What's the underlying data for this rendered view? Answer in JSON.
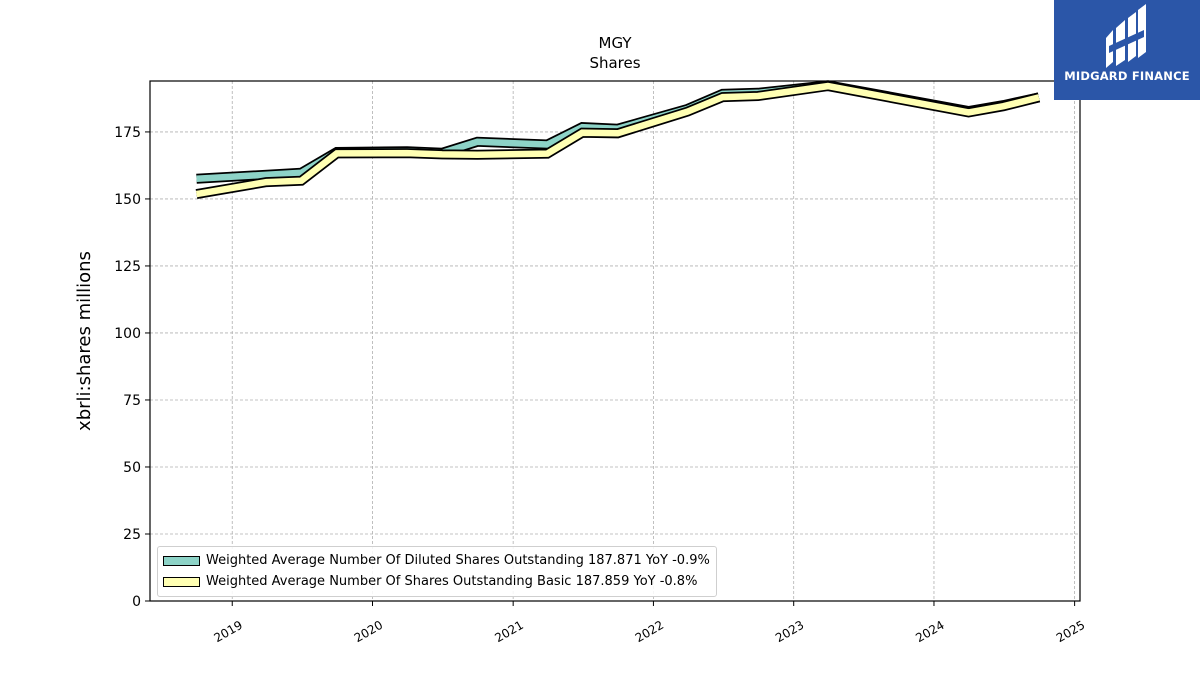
{
  "chart_data": {
    "type": "line",
    "title": "MGY",
    "subtitle": "Shares",
    "xlabel": "",
    "ylabel": "xbrli:shares millions",
    "x_ticks": [
      "2019",
      "2020",
      "2021",
      "2022",
      "2023",
      "2024",
      "2025"
    ],
    "y_ticks": [
      "0",
      "25",
      "50",
      "75",
      "100",
      "125",
      "150",
      "175"
    ],
    "xlim": [
      "2018-06-01",
      "2025-01-15"
    ],
    "ylim": [
      0,
      194
    ],
    "grid": true,
    "legend_position": "lower-left",
    "series": [
      {
        "name": "Weighted Average Number Of Diluted Shares Outstanding  187.871 YoY -0.9%",
        "color": "#8dd3c7",
        "x": [
          "2018-09-30",
          "2019-06-30",
          "2019-09-30",
          "2020-03-31",
          "2020-06-30",
          "2020-09-30",
          "2021-03-31",
          "2021-06-30",
          "2021-09-30",
          "2022-03-31",
          "2022-06-30",
          "2022-09-30",
          "2023-03-31",
          "2024-03-31",
          "2024-06-30",
          "2024-09-30"
        ],
        "values": [
          157.5,
          159.8,
          167.5,
          167.8,
          167.2,
          171.3,
          170.3,
          176.8,
          176.2,
          183.6,
          189.2,
          189.6,
          192.4,
          182.8,
          185.0,
          187.9
        ]
      },
      {
        "name": "Weighted Average Number Of Shares Outstanding Basic  187.859 YoY -0.8%",
        "color": "#ffffb3",
        "x": [
          "2018-09-30",
          "2019-03-31",
          "2019-06-30",
          "2019-09-30",
          "2020-03-31",
          "2020-06-30",
          "2020-09-30",
          "2021-03-31",
          "2021-06-30",
          "2021-09-30",
          "2022-03-31",
          "2022-06-30",
          "2022-09-30",
          "2023-03-31",
          "2024-03-31",
          "2024-06-30",
          "2024-09-30"
        ],
        "values": [
          151.8,
          156.3,
          156.8,
          167.0,
          167.1,
          166.6,
          166.5,
          166.9,
          174.7,
          174.5,
          182.6,
          188.0,
          188.4,
          192.1,
          182.3,
          184.6,
          187.9
        ]
      }
    ]
  },
  "brand": {
    "name": "MIDGARD FINANCE",
    "color": "#2b56a8"
  },
  "legend": {
    "items": [
      {
        "label": "Weighted Average Number Of Diluted Shares Outstanding  187.871 YoY -0.9%",
        "color": "#8dd3c7"
      },
      {
        "label": "Weighted Average Number Of Shares Outstanding Basic  187.859 YoY -0.8%",
        "color": "#ffffb3"
      }
    ]
  }
}
